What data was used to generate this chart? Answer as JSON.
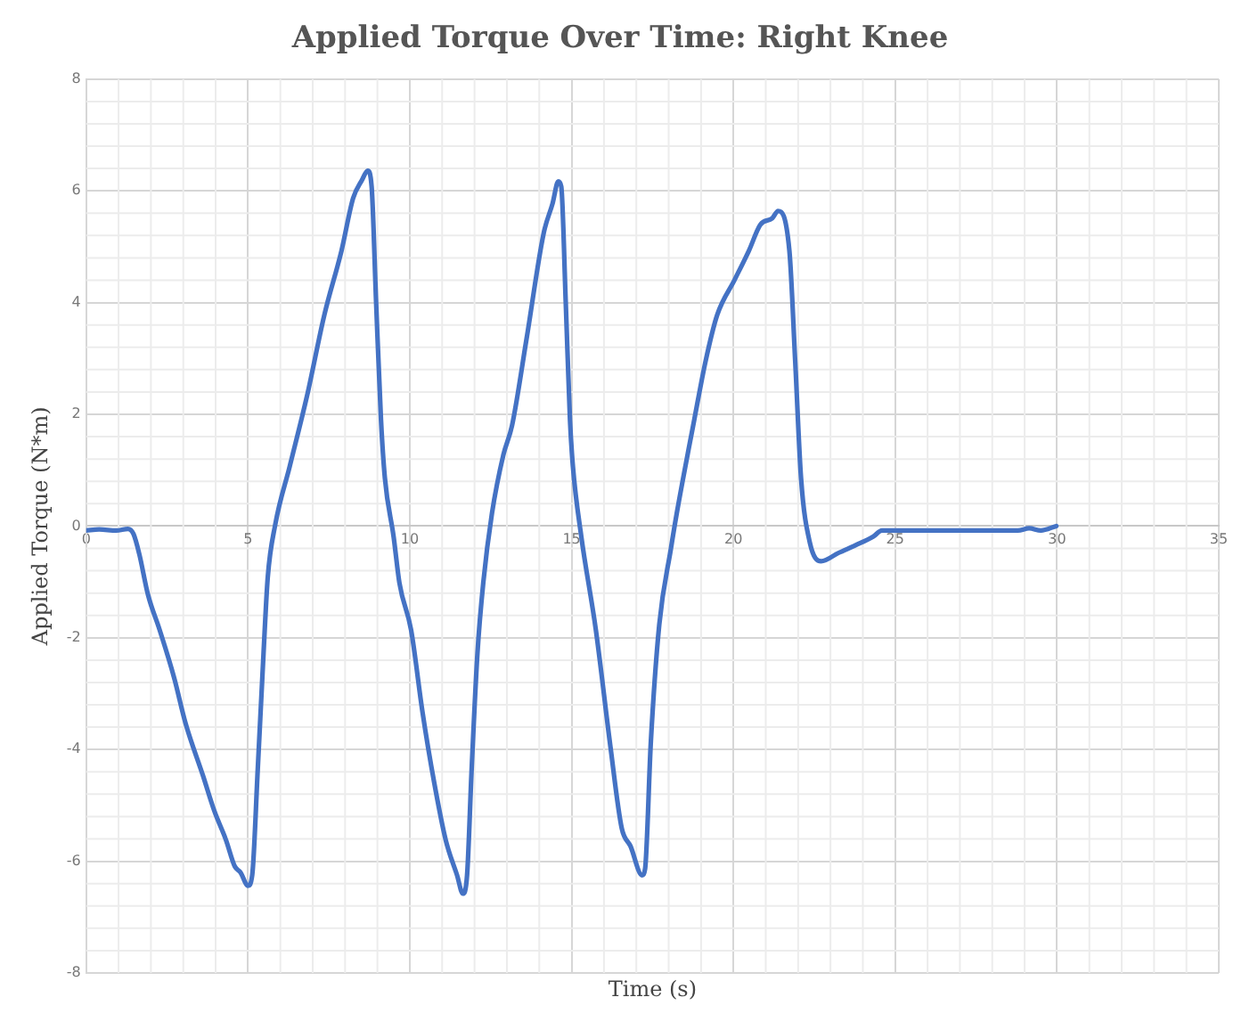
{
  "chart_data": {
    "type": "line",
    "title": "Applied Torque Over Time: Right Knee",
    "xlabel": "Time (s)",
    "ylabel": "Applied Torque (N*m)",
    "x": [
      0,
      0.4,
      0.93,
      1.29,
      1.46,
      1.64,
      1.91,
      2.27,
      2.71,
      3.07,
      3.61,
      3.96,
      4.32,
      4.59,
      4.77,
      5.0,
      5.13,
      5.3,
      5.48,
      5.61,
      5.84,
      6.29,
      6.82,
      7.36,
      7.89,
      8.25,
      8.52,
      8.7,
      8.82,
      8.96,
      9.11,
      9.23,
      9.5,
      9.68,
      10.04,
      10.39,
      10.75,
      11.11,
      11.46,
      11.64,
      11.77,
      11.91,
      12.09,
      12.27,
      12.54,
      12.89,
      13.16,
      13.61,
      14.14,
      14.41,
      14.59,
      14.68,
      14.82,
      14.95,
      15.04,
      15.3,
      15.75,
      16.2,
      16.55,
      16.82,
      17.18,
      17.27,
      17.45,
      17.71,
      18.07,
      18.25,
      18.79,
      19.14,
      19.5,
      20.04,
      20.48,
      20.84,
      21.2,
      21.38,
      21.73,
      21.91,
      22.09,
      22.36,
      22.71,
      23.25,
      23.79,
      24.32,
      24.59,
      25.75,
      27.18,
      28.79,
      29.14,
      29.5,
      29.98
    ],
    "series": [
      {
        "color": "#4472c4",
        "values": [
          -0.08,
          -0.06,
          -0.08,
          -0.05,
          -0.14,
          -0.5,
          -1.23,
          -1.86,
          -2.7,
          -3.53,
          -4.47,
          -5.1,
          -5.62,
          -6.09,
          -6.2,
          -6.44,
          -6.25,
          -4.37,
          -2.28,
          -0.92,
          0.02,
          1.07,
          2.32,
          3.78,
          4.93,
          5.87,
          6.19,
          6.36,
          6.08,
          3.99,
          1.9,
          0.86,
          -0.19,
          -1.02,
          -1.86,
          -3.32,
          -4.58,
          -5.62,
          -6.25,
          -6.58,
          -6.25,
          -4.37,
          -2.28,
          -1.02,
          0.23,
          1.27,
          1.8,
          3.36,
          5.25,
          5.77,
          6.17,
          6.08,
          3.99,
          1.9,
          1.07,
          -0.19,
          -1.86,
          -3.95,
          -5.41,
          -5.73,
          -6.25,
          -6.14,
          -3.85,
          -1.76,
          -0.4,
          0.23,
          1.9,
          2.95,
          3.78,
          4.41,
          4.93,
          5.4,
          5.51,
          5.64,
          4.93,
          2.95,
          0.86,
          -0.29,
          -0.63,
          -0.48,
          -0.34,
          -0.19,
          -0.08,
          -0.08,
          -0.08,
          -0.08,
          -0.04,
          -0.08,
          0
        ]
      }
    ],
    "xlim": [
      0,
      35
    ],
    "xticks": [
      0,
      5,
      10,
      15,
      20,
      25,
      30,
      35
    ],
    "ylim": [
      -8,
      8
    ],
    "yticks": [
      -8,
      -6,
      -4,
      -2,
      0,
      2,
      4,
      6,
      8
    ],
    "grid": true,
    "legend": false,
    "marker": "none",
    "line_style": "solid"
  }
}
